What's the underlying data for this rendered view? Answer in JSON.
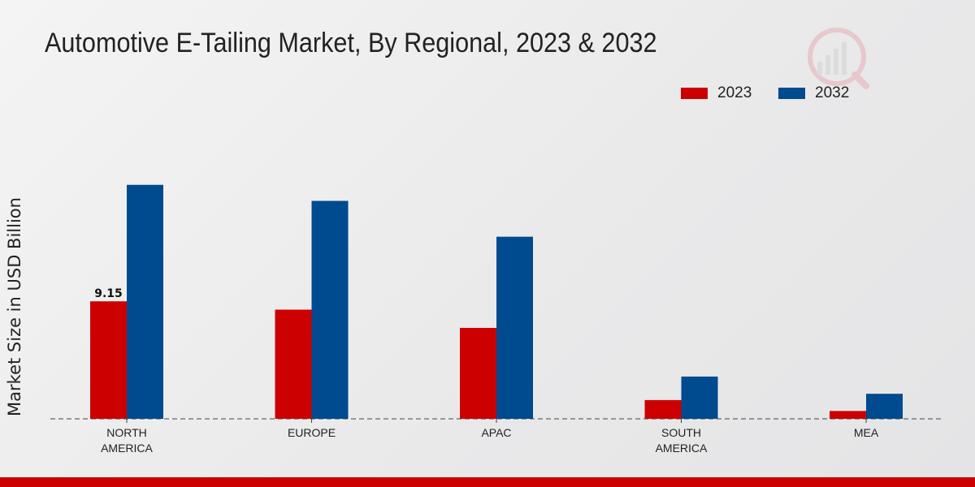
{
  "title": "Automotive E-Tailing Market, By Regional, 2023 & 2032",
  "colors": {
    "series_2023": "#cc0000",
    "series_2032": "#004a8f",
    "bottom_bar": "#cc0000"
  },
  "chart_data": {
    "type": "bar",
    "title": "Automotive E-Tailing Market, By Regional, 2023 & 2032",
    "xlabel": "",
    "ylabel": "Market Size in USD Billion",
    "categories": [
      "NORTH\nAMERICA",
      "EUROPE",
      "APAC",
      "SOUTH\nAMERICA",
      "MEA"
    ],
    "series": [
      {
        "name": "2023",
        "values": [
          9.15,
          8.5,
          7.08,
          1.46,
          0.61
        ]
      },
      {
        "name": "2032",
        "values": [
          18.22,
          16.97,
          14.18,
          3.29,
          1.95
        ]
      }
    ],
    "data_labels": [
      {
        "series": 0,
        "index": 0,
        "text": "9.15"
      }
    ],
    "ylim": [
      0,
      22.5
    ],
    "grid": false,
    "legend_position": "top-right"
  }
}
